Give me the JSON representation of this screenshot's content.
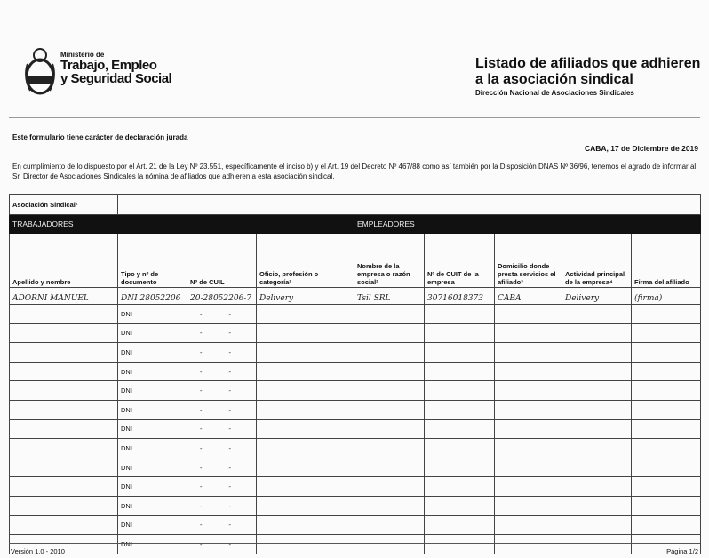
{
  "header": {
    "ministry_line1": "Ministerio de",
    "ministry_line2": "Trabajo, Empleo",
    "ministry_line3": "y Seguridad Social",
    "title_line1": "Listado de afiliados que adhieren",
    "title_line2": "a la asociación sindical",
    "subtitle": "Dirección Nacional de Asociaciones Sindicales",
    "logo_icon": "coat-of-arms-icon"
  },
  "declaration": "Este formulario tiene carácter de declaración jurada",
  "date": "CABA, 17 de Diciembre de 2019",
  "paragraph": "En cumplimiento de lo dispuesto por el Art. 21 de la Ley Nº 23.551, específicamente el inciso b) y el Art. 19 del Decreto Nº 467/88 como así también por la Disposición DNAS Nº 36/96, tenemos el agrado de informar al Sr. Director de Asociaciones Sindicales la nómina de afiliados que adhieren a esta asociación sindical.",
  "table": {
    "assoc_label": "Asociación Sindical¹",
    "assoc_value": "",
    "section_workers": "TRABAJADORES",
    "section_employers": "EMPLEADORES",
    "columns": [
      "Apellido y nombre",
      "Tipo y nº de documento",
      "Nº de CUIL",
      "Oficio, profesión o categoría²",
      "Nombre de la empresa o razón social²",
      "Nº de CUIT de la empresa",
      "Domicilio donde presta servicios el afiliado³",
      "Actividad principal de la empresa⁴",
      "Firma del afiliado"
    ],
    "filled_row": [
      "ADORNI MANUEL",
      "DNI 28052206",
      "20-28052206-7",
      "Delivery",
      "Tsil SRL",
      "30716018373",
      "CABA",
      "Delivery",
      "(firma)"
    ],
    "empty_doc_prefix": "DNI",
    "empty_cuil": "- -",
    "empty_row_count": 13
  },
  "footer": {
    "version": "Versión 1.0 - 2010",
    "page": "Página 1/2"
  }
}
